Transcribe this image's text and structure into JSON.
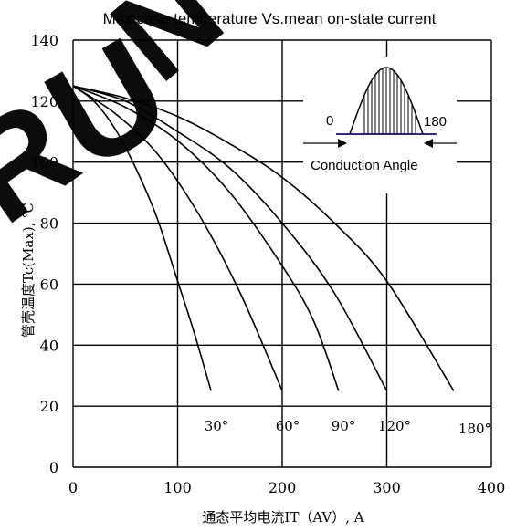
{
  "chart_data": {
    "type": "line",
    "title": "Max.case temperature  Vs.mean on-state current",
    "xlabel": "通态平均电流IT（AV）, A",
    "ylabel": "管壳温度Tc(Max), ℃",
    "xlim": [
      0,
      400
    ],
    "ylim": [
      0,
      140
    ],
    "x_ticks": [
      "0",
      "100",
      "200",
      "300",
      "400"
    ],
    "y_ticks": [
      "0",
      "20",
      "40",
      "60",
      "80",
      "100",
      "120",
      "140"
    ],
    "grid": true,
    "series": [
      {
        "name": "30°",
        "x": [
          0,
          20,
          40,
          60,
          80,
          100,
          115,
          132
        ],
        "y": [
          125,
          120,
          111,
          98,
          82,
          61,
          45,
          25
        ]
      },
      {
        "name": "60°",
        "x": [
          0,
          40,
          80,
          120,
          160,
          200
        ],
        "y": [
          125,
          116,
          103,
          83,
          57,
          25
        ]
      },
      {
        "name": "90°",
        "x": [
          0,
          50,
          100,
          150,
          200,
          230,
          254
        ],
        "y": [
          125,
          118,
          107,
          90,
          66,
          48,
          25
        ]
      },
      {
        "name": "120°",
        "x": [
          0,
          50,
          100,
          150,
          200,
          250,
          300
        ],
        "y": [
          125,
          120,
          110,
          98,
          80,
          57,
          25
        ]
      },
      {
        "name": "180°",
        "x": [
          0,
          50,
          100,
          150,
          200,
          250,
          300,
          364
        ],
        "y": [
          125,
          121,
          115,
          106,
          95,
          80,
          61,
          25
        ]
      }
    ],
    "inset": {
      "label_left": "0",
      "label_right": "180",
      "caption": "Conduction Angle"
    },
    "watermark": "RUN"
  }
}
